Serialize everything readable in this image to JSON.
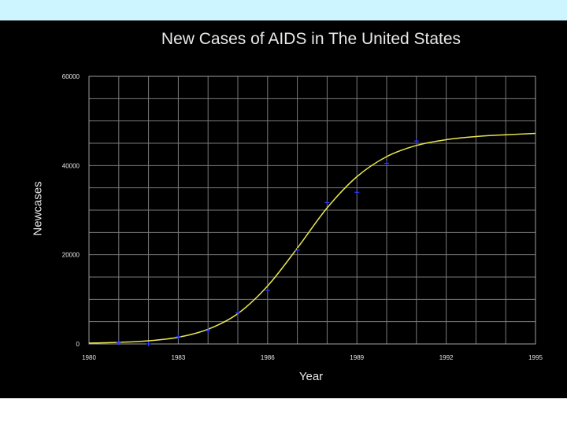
{
  "chart_data": {
    "type": "scatter",
    "title": "New Cases of AIDS in The United States",
    "xlabel": "Year",
    "ylabel": "Newcases",
    "xlim": [
      1980,
      1995
    ],
    "ylim": [
      0,
      60000
    ],
    "x_ticks": [
      "1980",
      "1983",
      "1986",
      "1989",
      "1992",
      "1995"
    ],
    "y_ticks": [
      "0",
      "20000",
      "40000",
      "60000"
    ],
    "grid": true,
    "series": [
      {
        "kind": "points",
        "color": "#2e3cff",
        "x": [
          1981,
          1982,
          1983,
          1984,
          1985,
          1986,
          1987,
          1988,
          1989,
          1990,
          1991
        ],
        "y": [
          300,
          0,
          1600,
          3000,
          7000,
          12000,
          21000,
          31700,
          34000,
          40500,
          45500
        ]
      },
      {
        "kind": "fit-curve",
        "color": "#e8e650",
        "x": [
          1980,
          1981,
          1982,
          1983,
          1984,
          1985,
          1986,
          1987,
          1988,
          1989,
          1990,
          1991,
          1992,
          1993,
          1994,
          1995
        ],
        "y": [
          200,
          350,
          700,
          1500,
          3300,
          6800,
          13000,
          21500,
          30500,
          37500,
          42000,
          44500,
          45800,
          46500,
          46900,
          47200
        ]
      }
    ]
  },
  "colors": {
    "panel": "#000000",
    "grid": "#7a7a7a",
    "frame": "#a0a0a0",
    "text": "#e8e8e8",
    "top_band": "#ccf5ff"
  }
}
